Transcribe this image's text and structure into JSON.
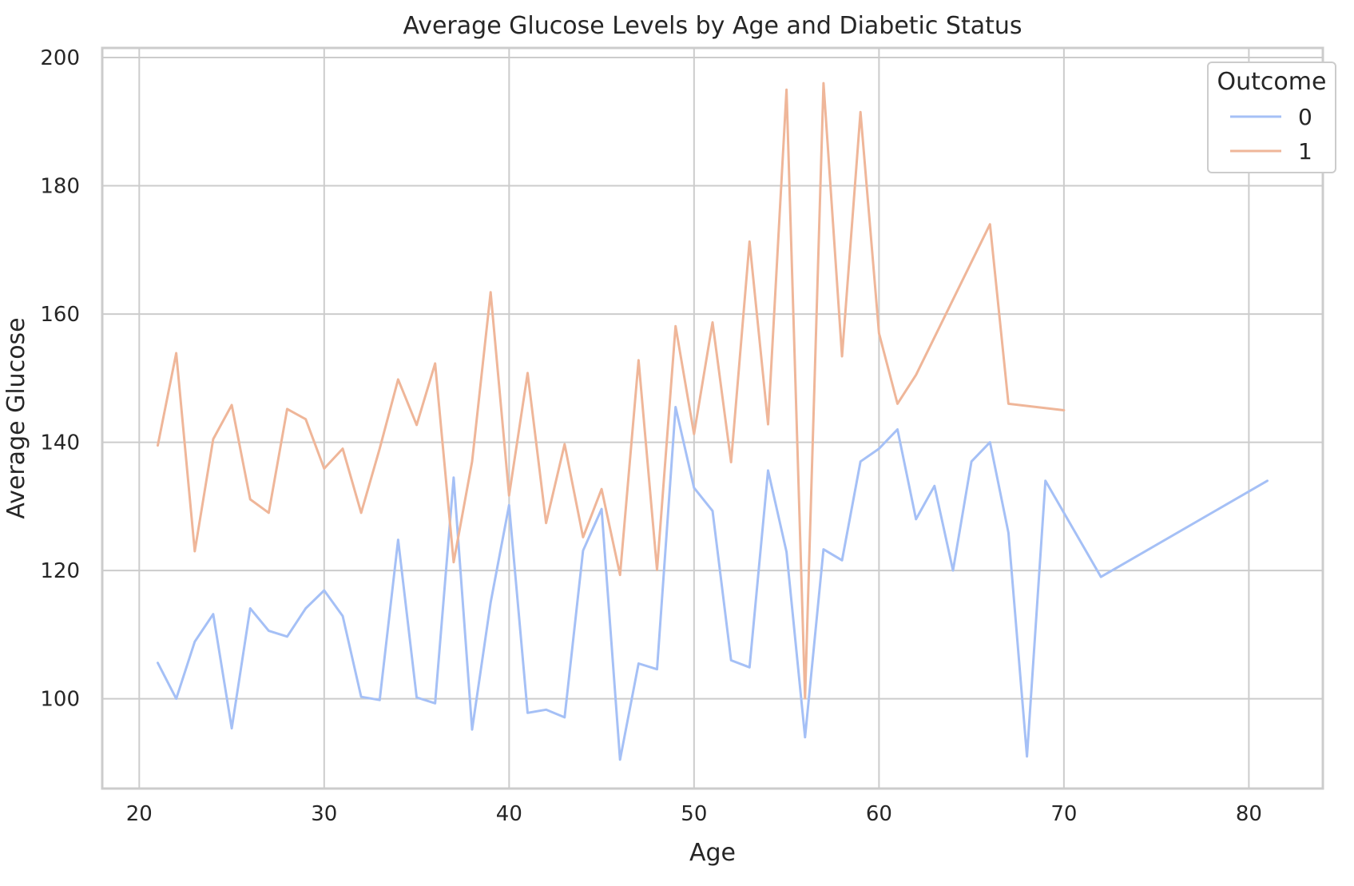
{
  "chart_data": {
    "type": "line",
    "title": "Average Glucose Levels by Age and Diabetic Status",
    "xlabel": "Age",
    "ylabel": "Average Glucose",
    "xlim": [
      18,
      84
    ],
    "ylim": [
      86,
      201.5
    ],
    "xticks": [
      20,
      30,
      40,
      50,
      60,
      70,
      80
    ],
    "yticks": [
      100,
      120,
      140,
      160,
      180,
      200
    ],
    "grid": true,
    "legend": {
      "title": "Outcome",
      "placement": "top-right"
    },
    "series": [
      {
        "name": "0",
        "color": "#a5c0f6",
        "x": [
          21,
          22,
          23,
          24,
          25,
          26,
          27,
          28,
          29,
          30,
          31,
          32,
          33,
          34,
          35,
          36,
          37,
          38,
          39,
          40,
          41,
          42,
          43,
          44,
          45,
          46,
          47,
          48,
          49,
          50,
          51,
          52,
          53,
          54,
          55,
          56,
          57,
          58,
          59,
          60,
          61,
          62,
          63,
          64,
          65,
          66,
          67,
          68,
          69,
          72,
          81
        ],
        "y": [
          105.6,
          100.0,
          108.9,
          113.2,
          95.4,
          114.1,
          110.6,
          109.7,
          114.1,
          116.9,
          112.9,
          100.3,
          99.8,
          124.8,
          100.2,
          99.3,
          134.5,
          95.2,
          115.0,
          130.2,
          97.8,
          98.3,
          97.1,
          123.1,
          129.6,
          90.5,
          105.5,
          104.6,
          145.5,
          132.9,
          129.3,
          106.0,
          104.9,
          135.6,
          122.9,
          94.0,
          123.3,
          121.6,
          137.0,
          139.0,
          142.0,
          128.0,
          133.2,
          120.0,
          137.0,
          140.0,
          125.9,
          91.0,
          134.0,
          119.0,
          134.0
        ]
      },
      {
        "name": "1",
        "color": "#efb699",
        "x": [
          21,
          22,
          23,
          24,
          25,
          26,
          27,
          28,
          29,
          30,
          31,
          32,
          33,
          34,
          35,
          36,
          37,
          38,
          39,
          40,
          41,
          42,
          43,
          44,
          45,
          46,
          47,
          48,
          49,
          50,
          51,
          52,
          53,
          54,
          55,
          56,
          57,
          58,
          59,
          60,
          61,
          62,
          66,
          67,
          70
        ],
        "y": [
          139.5,
          153.9,
          123.0,
          140.5,
          145.8,
          131.1,
          129.0,
          145.2,
          143.6,
          135.9,
          139.0,
          129.0,
          139.0,
          149.8,
          142.7,
          152.3,
          121.3,
          137.0,
          163.4,
          131.7,
          150.8,
          127.4,
          139.7,
          125.2,
          132.7,
          119.3,
          152.8,
          120.1,
          158.1,
          141.3,
          158.7,
          136.9,
          171.3,
          142.8,
          195.0,
          100.1,
          196.0,
          153.4,
          191.5,
          157.0,
          146.0,
          150.5,
          174.0,
          146.0,
          145.0
        ]
      }
    ]
  }
}
